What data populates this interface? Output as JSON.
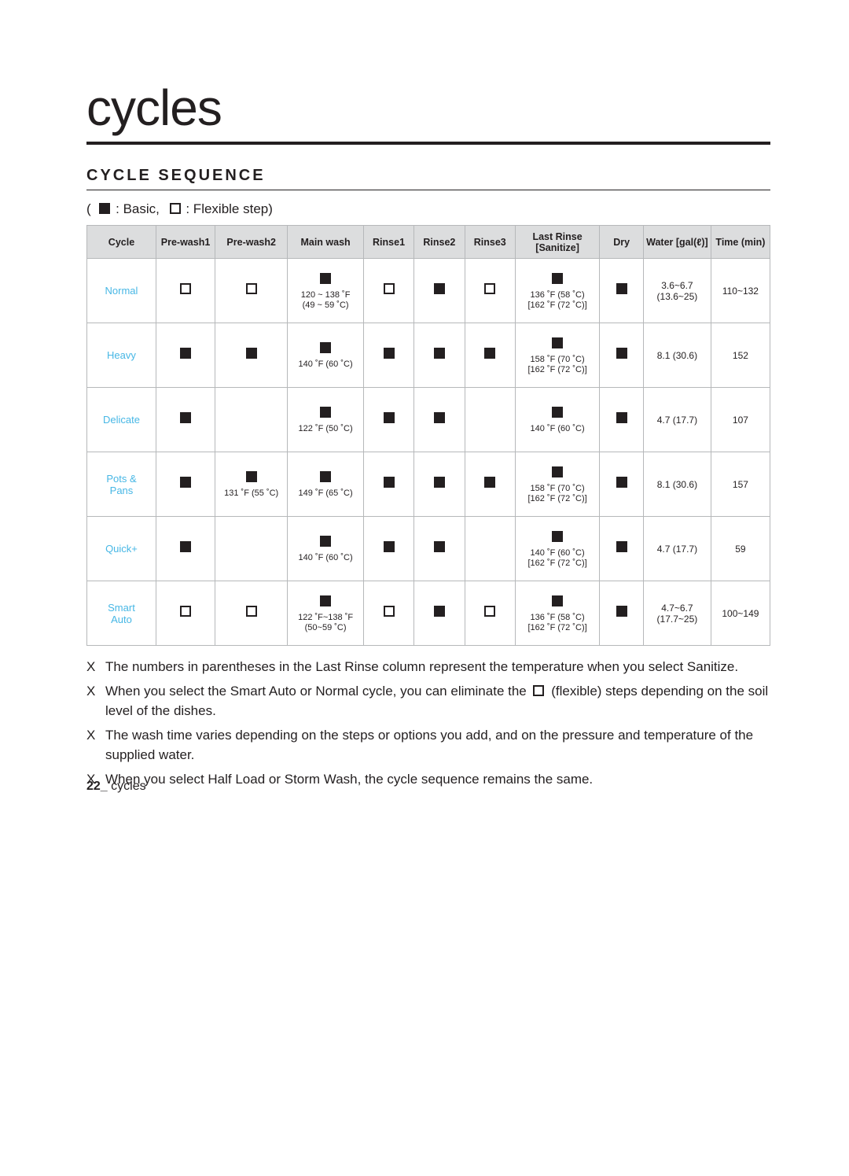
{
  "title": "cycles",
  "section_label": "CYCLE SEQUENCE",
  "legend_prefix": "(",
  "legend_basic": ": Basic,",
  "legend_flex": ": Flexible step)",
  "headers": {
    "cycle": "Cycle",
    "pre1": "Pre-wash1",
    "pre2": "Pre-wash2",
    "main": "Main wash",
    "r1": "Rinse1",
    "r2": "Rinse2",
    "r3": "Rinse3",
    "last": "Last Rinse [Sanitize]",
    "dry": "Dry",
    "water": "Water [gal(ℓ)]",
    "time": "Time (min)"
  },
  "rows": [
    {
      "label_l1": "Normal",
      "label_l2": "",
      "pw1": "h",
      "pw2": "h",
      "main_mark": "b",
      "main_t1": "120 ~ 138 ˚F",
      "main_t2": "(49 ~ 59 ˚C)",
      "r1": "h",
      "r2": "b",
      "r3": "h",
      "last_mark": "b",
      "last_t1": "136 ˚F (58 ˚C)",
      "last_t2": "[162 ˚F (72 ˚C)]",
      "dry": "b",
      "water": "3.6~6.7 (13.6~25)",
      "time": "110~132"
    },
    {
      "label_l1": "Heavy",
      "label_l2": "",
      "pw1": "b",
      "pw2": "b",
      "main_mark": "b",
      "main_t1": "140 ˚F (60 ˚C)",
      "main_t2": "",
      "r1": "b",
      "r2": "b",
      "r3": "b",
      "last_mark": "b",
      "last_t1": "158 ˚F (70 ˚C)",
      "last_t2": "[162 ˚F (72 ˚C)]",
      "dry": "b",
      "water": "8.1 (30.6)",
      "time": "152"
    },
    {
      "label_l1": "Delicate",
      "label_l2": "",
      "pw1": "b",
      "pw2": "",
      "main_mark": "b",
      "main_t1": "122 ˚F (50 ˚C)",
      "main_t2": "",
      "r1": "b",
      "r2": "b",
      "r3": "",
      "last_mark": "b",
      "last_t1": "140 ˚F (60 ˚C)",
      "last_t2": "",
      "dry": "b",
      "water": "4.7 (17.7)",
      "time": "107"
    },
    {
      "label_l1": "Pots &",
      "label_l2": "Pans",
      "pw1": "b",
      "pw2": "b",
      "pw2_t": "131 ˚F (55 ˚C)",
      "main_mark": "b",
      "main_t1": "149 ˚F (65 ˚C)",
      "main_t2": "",
      "r1": "b",
      "r2": "b",
      "r3": "b",
      "last_mark": "b",
      "last_t1": "158 ˚F (70 ˚C)",
      "last_t2": "[162 ˚F (72 ˚C)]",
      "dry": "b",
      "water": "8.1 (30.6)",
      "time": "157"
    },
    {
      "label_l1": "Quick+",
      "label_l2": "",
      "pw1": "b",
      "pw2": "",
      "main_mark": "b",
      "main_t1": "140 ˚F (60 ˚C)",
      "main_t2": "",
      "r1": "b",
      "r2": "b",
      "r3": "",
      "last_mark": "b",
      "last_t1": "140 ˚F (60 ˚C)",
      "last_t2": "[162 ˚F (72 ˚C)]",
      "dry": "b",
      "water": "4.7 (17.7)",
      "time": "59"
    },
    {
      "label_l1": "Smart",
      "label_l2": "Auto",
      "pw1": "h",
      "pw2": "h",
      "main_mark": "b",
      "main_t1": "122 ˚F~138 ˚F",
      "main_t2": "(50~59 ˚C)",
      "r1": "h",
      "r2": "b",
      "r3": "h",
      "last_mark": "b",
      "last_t1": "136 ˚F (58 ˚C)",
      "last_t2": "[162 ˚F (72 ˚C)]",
      "dry": "b",
      "water": "4.7~6.7 (17.7~25)",
      "time": "100~149"
    }
  ],
  "notes": [
    "The numbers in parentheses in the Last Rinse column represent the temperature when you select Sanitize.",
    "When you select the Smart Auto or Normal cycle, you can eliminate the  □ (flexible) steps depending on the soil level of the dishes.",
    "The wash time varies depending on the steps or options you add, and on the pressure and temperature of the supplied water.",
    "When you select Half Load or Storm Wash, the cycle sequence remains the same."
  ],
  "note_bullet": "X",
  "footer_page": "22_",
  "footer_text": " cycles"
}
